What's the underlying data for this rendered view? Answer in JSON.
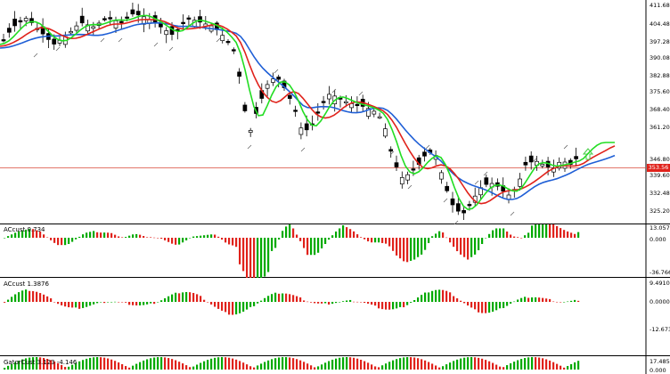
{
  "main": {
    "price_axis": [
      "411.68",
      "404.48",
      "397.28",
      "390.08",
      "382.88",
      "375.60",
      "368.40",
      "361.20",
      "346.80",
      "339.60",
      "332.48",
      "325.20"
    ],
    "current_price": "353.56",
    "colors": {
      "up": "#00aa00",
      "down": "#e0221b",
      "bullish_candle": "#ffffff",
      "bearish_candle": "#000000",
      "ma_blue": "#1f5fd6",
      "ma_red": "#e0221b",
      "ma_green": "#22dd22",
      "price_line": "#d84a3a",
      "arrow": "#44cc44"
    }
  },
  "ac": {
    "label": "ACcust 0.734",
    "axis": [
      "13.057",
      "0.000",
      "-36.766"
    ]
  },
  "acc": {
    "label": "ACcust 1.3876",
    "axis": [
      "9.4910",
      "0.0000",
      "-12.6738"
    ]
  },
  "gator": {
    "label": "GatorCust 3.123 -4.146",
    "axis": [
      "17.485",
      "0.000"
    ]
  }
}
